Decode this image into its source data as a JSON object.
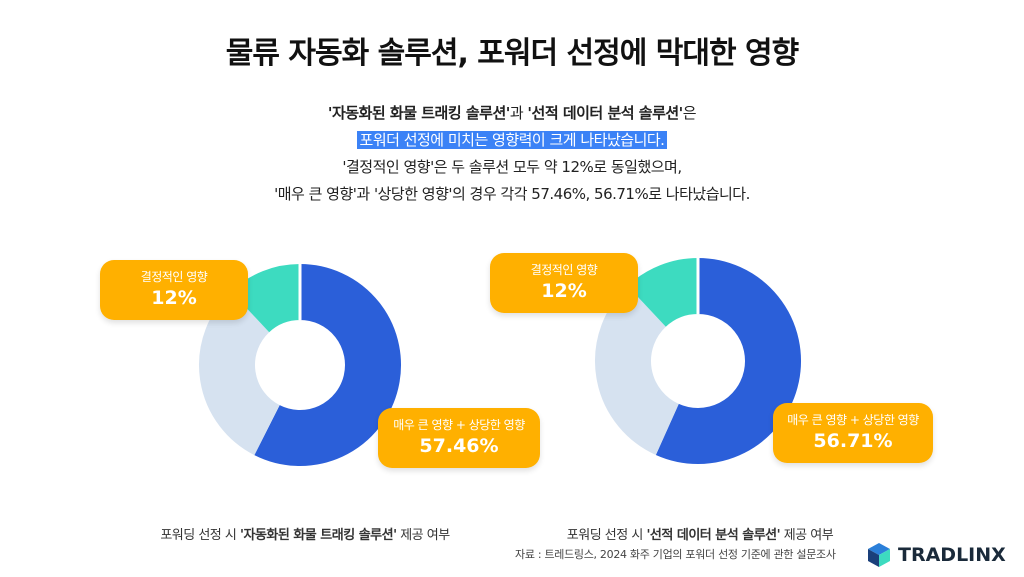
{
  "title": "물류 자동화 솔루션, 포워더 선정에 막대한 영향",
  "summary": {
    "line1_q1": "'자동화된 화물 트래킹 솔루션'",
    "line1_mid": "과 ",
    "line1_q2": "'선적 데이터 분석 솔루션'",
    "line1_end": "은",
    "line2": "포워더 선정에 미치는 영향력이 크게 나타났습니다.",
    "line3": "'결정적인 영향'은 두 솔루션 모두 약 12%로 동일했으며,",
    "line4": "'매우 큰 영향'과 '상당한 영향'의 경우 각각 57.46%, 56.71%로 나타났습니다."
  },
  "chart_data": [
    {
      "type": "pie",
      "slices": [
        {
          "label": "매우 큰 영향 + 상당한 영향",
          "value": 57.46,
          "color": "#2b5fd9"
        },
        {
          "label": "",
          "value": 30.54,
          "color": "#d6e2f0"
        },
        {
          "label": "결정적인 영향",
          "value": 12,
          "color": "#3ddbc0"
        }
      ],
      "callouts": {
        "decisive": {
          "label": "결정적인 영향",
          "value": "12%"
        },
        "major": {
          "label": "매우 큰 영향 + 상당한 영향",
          "value": "57.46%"
        }
      },
      "caption_pre": "포워딩 선정 시 ",
      "caption_bold": "'자동화된 화물 트래킹 솔루션'",
      "caption_post": " 제공 여부"
    },
    {
      "type": "pie",
      "slices": [
        {
          "label": "매우 큰 영향 + 상당한 영향",
          "value": 56.71,
          "color": "#2b5fd9"
        },
        {
          "label": "",
          "value": 31.29,
          "color": "#d6e2f0"
        },
        {
          "label": "결정적인 영향",
          "value": 12,
          "color": "#3ddbc0"
        }
      ],
      "callouts": {
        "decisive": {
          "label": "결정적인 영향",
          "value": "12%"
        },
        "major": {
          "label": "매우 큰 영향 + 상당한 영향",
          "value": "56.71%"
        }
      },
      "caption_pre": "포워딩 선정 시 ",
      "caption_bold": "'선적 데이터 분석 솔루션'",
      "caption_post": " 제공 여부"
    }
  ],
  "source": "자료 : 트레드링스, 2024 화주 기업의 포워더 선정 기준에 관한 설문조사",
  "logo": {
    "text": "TRADLINX",
    "icon": "cube-logo-icon"
  }
}
